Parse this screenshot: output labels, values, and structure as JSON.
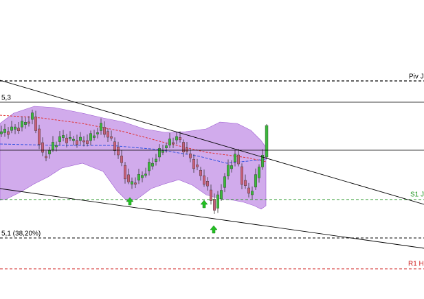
{
  "labels": {
    "pivot": "Piv J",
    "level_top": "5,3",
    "s1": "S1 J",
    "fib": "5,1 (38,20%)",
    "r1": "R1 H"
  }
}
